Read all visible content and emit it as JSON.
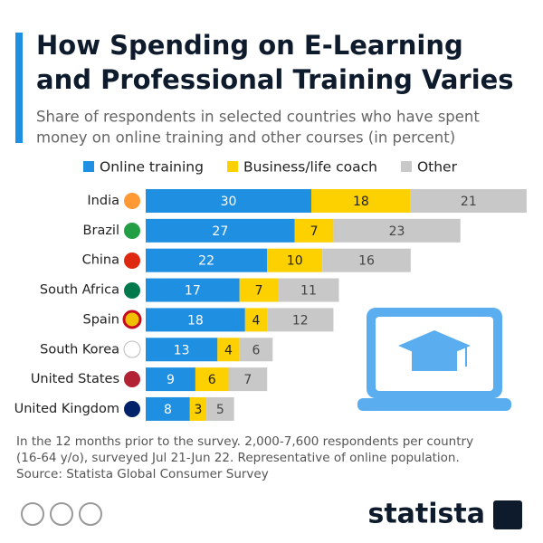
{
  "chart_data": {
    "type": "stacked-bar-horizontal",
    "title": [
      "How Spending on E-Learning",
      "and Professional Training Varies"
    ],
    "subtitle": [
      "Share of respondents in selected countries who have spent",
      "money on online training and other courses (in percent)"
    ],
    "categories": [
      "India",
      "Brazil",
      "China",
      "South Africa",
      "Spain",
      "South Korea",
      "United States",
      "United Kingdom"
    ],
    "series": [
      {
        "name": "Online training",
        "color": "#1f8fe2",
        "values": [
          30,
          27,
          22,
          17,
          18,
          13,
          9,
          8
        ]
      },
      {
        "name": "Business/life coach",
        "color": "#fdd000",
        "values": [
          18,
          7,
          10,
          7,
          4,
          4,
          6,
          3
        ]
      },
      {
        "name": "Other",
        "color": "#c8c8c8",
        "values": [
          21,
          23,
          16,
          11,
          12,
          6,
          7,
          5
        ]
      }
    ],
    "notes": [
      "In the 12 months prior to the survey. 2,000-7,600 respondents per country",
      "(16-64 y/o), surveyed Jul 21-Jun 22. Representative of online population.",
      "Source: Statista Global Consumer Survey"
    ],
    "brand": "statista"
  }
}
